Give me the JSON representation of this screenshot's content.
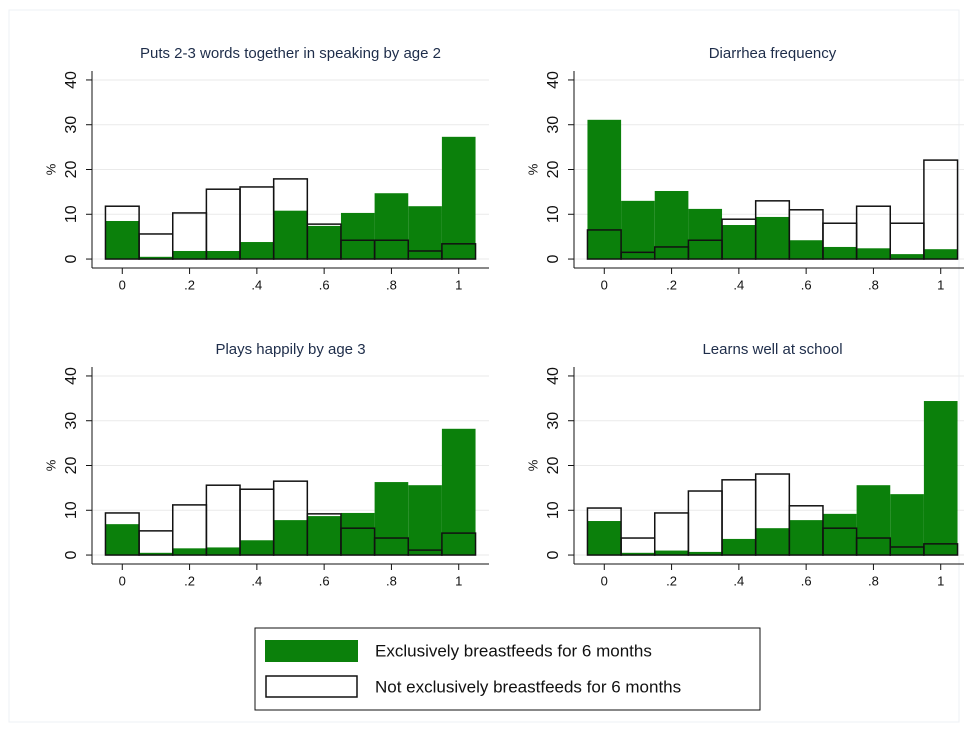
{
  "chart_data": [
    {
      "type": "histogram",
      "title": "Puts 2-3 words together in speaking by age 2",
      "ylabel": "%",
      "bins": [
        -0.05,
        0.05,
        0.15,
        0.25,
        0.35,
        0.45,
        0.55,
        0.65,
        0.75,
        0.85,
        0.95,
        1.05
      ],
      "xlim": [
        -0.09,
        1.09
      ],
      "ylim": [
        -2,
        42
      ],
      "grid": true,
      "xticks": [
        0,
        {
          "value": 0.2,
          "label": ".2"
        },
        {
          "value": 0.4,
          "label": ".4"
        },
        {
          "value": 0.6,
          "label": ".6"
        },
        {
          "value": 0.8,
          "label": ".8"
        },
        1
      ],
      "yticks": [
        0,
        10,
        20,
        30,
        40
      ],
      "series": [
        {
          "name": "Exclusively breastfeeds for 6 months",
          "color": "#0b800b",
          "values": [
            8.5,
            0.5,
            1.8,
            1.8,
            3.8,
            10.8,
            7.4,
            10.3,
            14.7,
            11.8,
            27.3
          ]
        },
        {
          "name": "Not exclusively breastfeeds for 6 months",
          "color": "#ffffff",
          "values": [
            11.8,
            5.6,
            10.3,
            15.6,
            16.1,
            17.9,
            7.8,
            4.2,
            4.2,
            1.8,
            3.4
          ]
        }
      ]
    },
    {
      "type": "histogram",
      "title": "Diarrhea frequency",
      "ylabel": "%",
      "bins": [
        -0.05,
        0.05,
        0.15,
        0.25,
        0.35,
        0.45,
        0.55,
        0.65,
        0.75,
        0.85,
        0.95,
        1.05
      ],
      "xlim": [
        -0.09,
        1.09
      ],
      "ylim": [
        -2,
        42
      ],
      "grid": true,
      "xticks": [
        0,
        {
          "value": 0.2,
          "label": ".2"
        },
        {
          "value": 0.4,
          "label": ".4"
        },
        {
          "value": 0.6,
          "label": ".6"
        },
        {
          "value": 0.8,
          "label": ".8"
        },
        1
      ],
      "yticks": [
        0,
        10,
        20,
        30,
        40
      ],
      "series": [
        {
          "name": "Exclusively breastfeeds for 6 months",
          "color": "#0b800b",
          "values": [
            31.1,
            13,
            15.2,
            11.2,
            7.6,
            9.4,
            4.2,
            2.7,
            2.4,
            1.1,
            2.2
          ]
        },
        {
          "name": "Not exclusively breastfeeds for 6 months",
          "color": "#ffffff",
          "values": [
            6.5,
            1.5,
            2.7,
            4.2,
            8.9,
            13,
            11,
            8,
            11.8,
            8,
            22.1
          ]
        }
      ]
    },
    {
      "type": "histogram",
      "title": "Plays happily by age 3",
      "ylabel": "%",
      "bins": [
        -0.05,
        0.05,
        0.15,
        0.25,
        0.35,
        0.45,
        0.55,
        0.65,
        0.75,
        0.85,
        0.95,
        1.05
      ],
      "xlim": [
        -0.09,
        1.09
      ],
      "ylim": [
        -2,
        42
      ],
      "grid": true,
      "xticks": [
        0,
        {
          "value": 0.2,
          "label": ".2"
        },
        {
          "value": 0.4,
          "label": ".4"
        },
        {
          "value": 0.6,
          "label": ".6"
        },
        {
          "value": 0.8,
          "label": ".8"
        },
        1
      ],
      "yticks": [
        0,
        10,
        20,
        30,
        40
      ],
      "series": [
        {
          "name": "Exclusively breastfeeds for 6 months",
          "color": "#0b800b",
          "values": [
            6.9,
            0.5,
            1.5,
            1.7,
            3.3,
            7.8,
            8.7,
            9.4,
            16.3,
            15.6,
            28.2
          ]
        },
        {
          "name": "Not exclusively breastfeeds for 6 months",
          "color": "#ffffff",
          "values": [
            9.4,
            5.4,
            11.2,
            15.6,
            14.7,
            16.5,
            9.2,
            6,
            3.8,
            1.1,
            4.9
          ]
        }
      ]
    },
    {
      "type": "histogram",
      "title": "Learns well at school",
      "ylabel": "%",
      "bins": [
        -0.05,
        0.05,
        0.15,
        0.25,
        0.35,
        0.45,
        0.55,
        0.65,
        0.75,
        0.85,
        0.95,
        1.05
      ],
      "xlim": [
        -0.09,
        1.09
      ],
      "ylim": [
        -2,
        42
      ],
      "grid": true,
      "xticks": [
        0,
        {
          "value": 0.2,
          "label": ".2"
        },
        {
          "value": 0.4,
          "label": ".4"
        },
        {
          "value": 0.6,
          "label": ".6"
        },
        {
          "value": 0.8,
          "label": ".8"
        },
        1
      ],
      "yticks": [
        0,
        10,
        20,
        30,
        40
      ],
      "series": [
        {
          "name": "Exclusively breastfeeds for 6 months",
          "color": "#0b800b",
          "values": [
            7.6,
            0.5,
            1,
            0.7,
            3.6,
            6,
            7.8,
            9.2,
            15.6,
            13.6,
            34.4
          ]
        },
        {
          "name": "Not exclusively breastfeeds for 6 months",
          "color": "#ffffff",
          "values": [
            10.5,
            3.8,
            9.4,
            14.3,
            16.8,
            18.1,
            11,
            6,
            3.8,
            1.8,
            2.5
          ]
        }
      ]
    }
  ]
}
